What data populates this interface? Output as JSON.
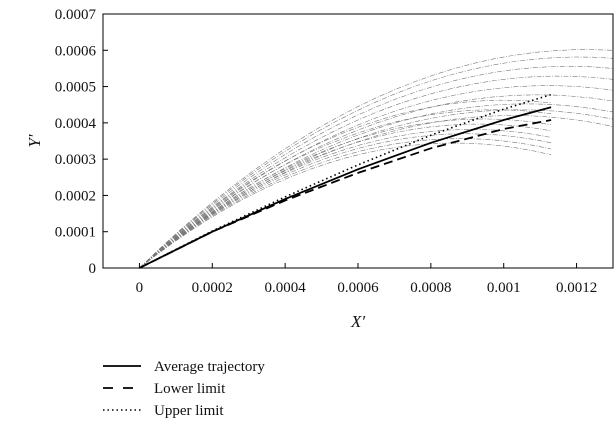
{
  "chart_data": {
    "type": "line",
    "title": "",
    "xlabel": "X′",
    "ylabel": "Y′",
    "xlim": [
      -0.0001,
      0.0013
    ],
    "ylim": [
      0,
      0.0007
    ],
    "x_ticks": [
      0,
      0.0002,
      0.0004,
      0.0006,
      0.0008,
      0.001,
      0.0012
    ],
    "x_tick_labels": [
      "0",
      "0.0002",
      "0.0004",
      "0.0006",
      "0.0008",
      "0.001",
      "0.0012"
    ],
    "y_ticks": [
      0,
      0.0001,
      0.0002,
      0.0003,
      0.0004,
      0.0005,
      0.0006,
      0.0007
    ],
    "y_tick_labels": [
      "0",
      "0.0001",
      "0.0002",
      "0.0003",
      "0.0004",
      "0.0005",
      "0.0006",
      "0.0007"
    ],
    "grid": false,
    "legend_position": "bottom-left",
    "legend": [
      {
        "label": "Average trajectory",
        "style": "solid"
      },
      {
        "label": "Lower limit",
        "style": "dashed"
      },
      {
        "label": "Upper limit",
        "style": "dotted"
      }
    ],
    "series": [
      {
        "name": "Average trajectory",
        "style": "solid",
        "x": [
          0,
          0.0002,
          0.0004,
          0.0006,
          0.0008,
          0.001,
          0.00113
        ],
        "y": [
          0,
          0.0001,
          0.00019,
          0.000272,
          0.000345,
          0.000408,
          0.000443
        ]
      },
      {
        "name": "Lower limit",
        "style": "dashed",
        "x": [
          0,
          0.0002,
          0.0004,
          0.0006,
          0.0008,
          0.001,
          0.00113
        ],
        "y": [
          0,
          0.0001,
          0.000186,
          0.000262,
          0.00033,
          0.000383,
          0.000408
        ]
      },
      {
        "name": "Upper limit",
        "style": "dotted",
        "x": [
          0,
          0.0002,
          0.0004,
          0.0006,
          0.0008,
          0.001,
          0.00113
        ],
        "y": [
          0,
          0.000102,
          0.000196,
          0.000284,
          0.000366,
          0.000438,
          0.000478
        ]
      }
    ],
    "sample_trajectories": [
      {
        "end_x": 0.0013,
        "end_y": 0.0006
      },
      {
        "end_x": 0.0013,
        "end_y": 0.000578
      },
      {
        "end_x": 0.0013,
        "end_y": 0.00055
      },
      {
        "end_x": 0.0013,
        "end_y": 0.00052
      },
      {
        "end_x": 0.0013,
        "end_y": 0.00049
      },
      {
        "end_x": 0.0013,
        "end_y": 0.00046
      },
      {
        "end_x": 0.0013,
        "end_y": 0.00043
      },
      {
        "end_x": 0.0013,
        "end_y": 0.00041
      },
      {
        "end_x": 0.0013,
        "end_y": 0.00039
      },
      {
        "end_x": 0.00113,
        "end_y": 0.000455
      },
      {
        "end_x": 0.00113,
        "end_y": 0.000425
      },
      {
        "end_x": 0.00113,
        "end_y": 0.000395
      },
      {
        "end_x": 0.00113,
        "end_y": 0.000378
      },
      {
        "end_x": 0.00113,
        "end_y": 0.00036
      },
      {
        "end_x": 0.00113,
        "end_y": 0.000345
      },
      {
        "end_x": 0.00113,
        "end_y": 0.000328
      },
      {
        "end_x": 0.00113,
        "end_y": 0.000312
      }
    ]
  }
}
